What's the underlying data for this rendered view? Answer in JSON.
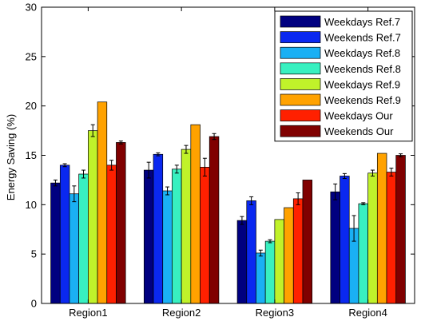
{
  "chart_data": {
    "type": "bar",
    "categories": [
      "Region1",
      "Region2",
      "Region3",
      "Region4"
    ],
    "ylabel": "Energy Saving (%)",
    "xlabel": "",
    "ylim": [
      0,
      30
    ],
    "yticks": [
      0,
      5,
      10,
      15,
      20,
      25,
      30
    ],
    "grid": false,
    "legend_position": "top-right",
    "series": [
      {
        "name": "Weekdays Ref.7",
        "color": "#000080",
        "values": [
          12.2,
          13.5,
          8.4,
          11.3
        ],
        "errors": [
          0.3,
          0.8,
          0.4,
          0.8
        ]
      },
      {
        "name": "Weekends Ref.7",
        "color": "#0a28f0",
        "values": [
          14.0,
          15.1,
          10.4,
          12.9
        ],
        "errors": [
          0.15,
          0.15,
          0.4,
          0.25
        ]
      },
      {
        "name": "Weekdays Ref.8",
        "color": "#1ab0f4",
        "values": [
          11.1,
          11.4,
          5.1,
          7.6
        ],
        "errors": [
          0.8,
          0.4,
          0.3,
          1.3
        ]
      },
      {
        "name": "Weekends Ref.8",
        "color": "#38f0c0",
        "values": [
          13.1,
          13.6,
          6.3,
          10.1
        ],
        "errors": [
          0.4,
          0.4,
          0.15,
          0.1
        ]
      },
      {
        "name": "Weekdays Ref.9",
        "color": "#c0f22a",
        "values": [
          17.5,
          15.6,
          8.5,
          13.2
        ],
        "errors": [
          0.6,
          0.4,
          0,
          0.3
        ]
      },
      {
        "name": "Weekends Ref.9",
        "color": "#ffa200",
        "values": [
          20.4,
          18.1,
          9.7,
          15.2
        ],
        "errors": [
          0,
          0,
          0,
          0
        ]
      },
      {
        "name": "Weekdays Our",
        "color": "#ff2000",
        "values": [
          14.0,
          13.8,
          10.6,
          13.3
        ],
        "errors": [
          0.5,
          0.9,
          0.6,
          0.4
        ]
      },
      {
        "name": "Weekends Our",
        "color": "#800000",
        "values": [
          16.3,
          16.9,
          12.5,
          15.0
        ],
        "errors": [
          0.15,
          0.3,
          0,
          0.15
        ]
      }
    ]
  }
}
